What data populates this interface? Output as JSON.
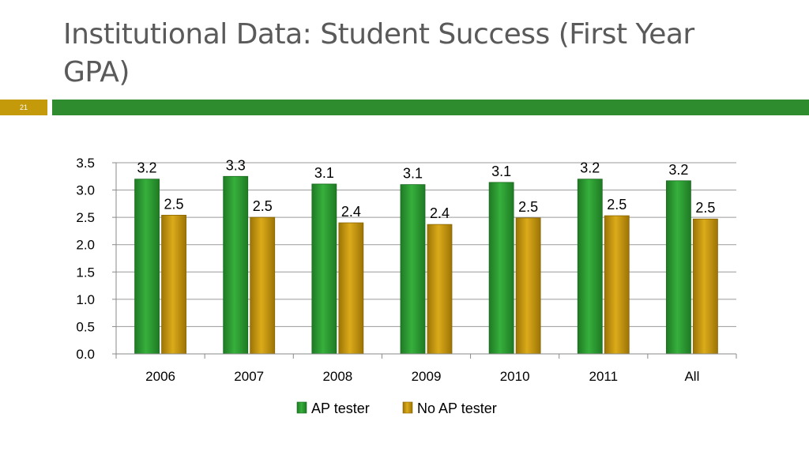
{
  "slide": {
    "title": "Institutional Data: Student Success (First Year GPA)",
    "number": "21"
  },
  "colors": {
    "title_rule": "#2e8b2e",
    "number_box": "#c49a0a"
  },
  "chart_data": {
    "type": "bar",
    "title": "",
    "xlabel": "",
    "ylabel": "",
    "categories": [
      "2006",
      "2007",
      "2008",
      "2009",
      "2010",
      "2011",
      "All"
    ],
    "series": [
      {
        "name": "AP tester",
        "values": [
          3.2,
          3.25,
          3.11,
          3.1,
          3.14,
          3.2,
          3.17
        ],
        "labels": [
          "3.2",
          "3.3",
          "3.1",
          "3.1",
          "3.1",
          "3.2",
          "3.2"
        ],
        "color": "#2e9e34"
      },
      {
        "name": "No AP tester",
        "values": [
          2.54,
          2.5,
          2.4,
          2.37,
          2.49,
          2.53,
          2.47
        ],
        "labels": [
          "2.5",
          "2.5",
          "2.4",
          "2.4",
          "2.5",
          "2.5",
          "2.5"
        ],
        "color": "#c9980b"
      }
    ],
    "ylim": [
      0,
      3.5
    ],
    "yticks": [
      "0.0",
      "0.5",
      "1.0",
      "1.5",
      "2.0",
      "2.5",
      "3.0",
      "3.5"
    ],
    "grid": true,
    "legend_position": "bottom"
  }
}
